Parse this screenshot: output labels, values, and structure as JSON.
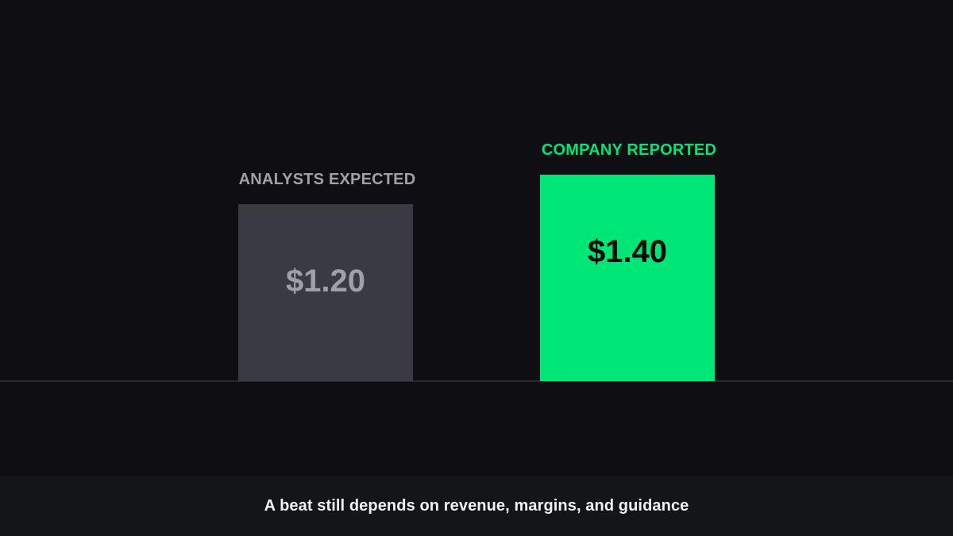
{
  "caption": "A beat still depends on revenue, margins, and guidance",
  "colors": {
    "background": "#0f0f13",
    "caption_bar": "#141519",
    "baseline": "#2a2b31"
  },
  "chart_data": {
    "type": "bar",
    "categories": [
      "ANALYSTS EXPECTED",
      "COMPANY REPORTED"
    ],
    "values": [
      1.2,
      1.4
    ],
    "data_labels": [
      "$1.20",
      "$1.40"
    ],
    "bar_colors": [
      "#3a3b42",
      "#00e676"
    ],
    "label_colors": [
      "#a0a1a8",
      "#00e676"
    ],
    "value_label_colors": [
      "#a0a1a8",
      "#0a0a0a"
    ],
    "title": "",
    "xlabel": "",
    "ylabel": "",
    "ylim": [
      0,
      1.4
    ],
    "grid": false
  }
}
